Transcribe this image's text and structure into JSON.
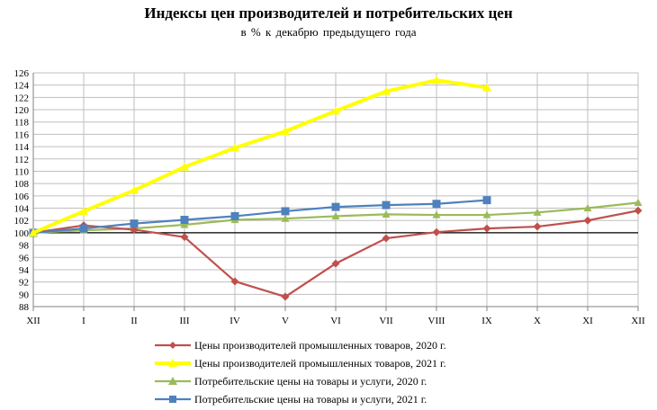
{
  "chart_data": {
    "type": "line",
    "title": "Индексы цен производителей и потребительских цен",
    "subtitle": "в % к декабрю предыдущего года",
    "categories": [
      "XII",
      "I",
      "II",
      "III",
      "IV",
      "V",
      "VI",
      "VII",
      "VIII",
      "IX",
      "X",
      "XI",
      "XII"
    ],
    "ylim": [
      88,
      126
    ],
    "ytick_step": 2,
    "grid": true,
    "legend_position": "bottom",
    "series": [
      {
        "name": "Цены производителей промышленных товаров, 2020 г.",
        "color": "#c0504d",
        "marker": "diamond",
        "values": [
          100,
          101.2,
          100.5,
          99.3,
          92.1,
          89.6,
          95.0,
          99.1,
          100.1,
          100.7,
          101.0,
          102.0,
          103.6
        ]
      },
      {
        "name": "Цены производителей промышленных товаров, 2021 г.",
        "color": "#ffff00",
        "marker": "triangle",
        "values": [
          100,
          103.5,
          106.9,
          110.7,
          113.8,
          116.5,
          119.8,
          123.0,
          124.8,
          123.6,
          null,
          null,
          null
        ]
      },
      {
        "name": "Потребительские цены на товары и услуги, 2020 г.",
        "color": "#9bbb59",
        "marker": "triangle",
        "values": [
          100,
          100.4,
          100.7,
          101.3,
          102.1,
          102.3,
          102.7,
          103.0,
          102.9,
          102.9,
          103.3,
          104.0,
          104.9
        ]
      },
      {
        "name": "Потребительские цены на товары и услуги, 2021 г.",
        "color": "#4f81bd",
        "marker": "square",
        "values": [
          100,
          100.7,
          101.5,
          102.1,
          102.7,
          103.5,
          104.2,
          104.5,
          104.7,
          105.3,
          null,
          null,
          null
        ]
      }
    ]
  }
}
